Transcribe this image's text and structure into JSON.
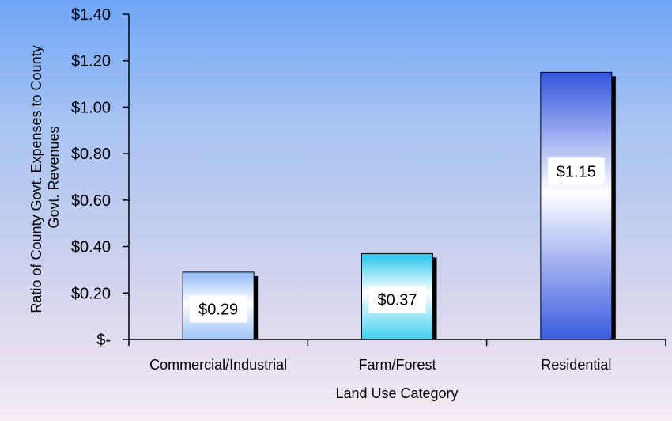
{
  "chart_data": {
    "type": "bar",
    "categories": [
      "Commercial/Industrial",
      "Farm/Forest",
      "Residential"
    ],
    "values": [
      0.29,
      0.37,
      1.15
    ],
    "data_labels": [
      "$0.29",
      "$0.37",
      "$1.15"
    ],
    "xlabel": "Land Use Category",
    "ylabel_lines": [
      "Ratio of County Govt. Expenses to County",
      "Govt. Revenues"
    ],
    "ylim": [
      0,
      1.4
    ],
    "yticks": [
      0,
      0.2,
      0.4,
      0.6,
      0.8,
      1.0,
      1.2,
      1.4
    ],
    "ytick_labels": [
      "$-",
      "$0.20",
      "$0.40",
      "$0.60",
      "$0.80",
      "$1.00",
      "$1.20",
      "$1.40"
    ],
    "grid": false,
    "legend": "none",
    "bar_colors": [
      [
        "#8fb8f5",
        "#ffffff",
        "#9fc4f7"
      ],
      [
        "#22c3ea",
        "#ffffff",
        "#40d0f0"
      ],
      [
        "#3355dd",
        "#ffffff",
        "#3b5ce0"
      ]
    ],
    "shadow_color": "#000000"
  }
}
